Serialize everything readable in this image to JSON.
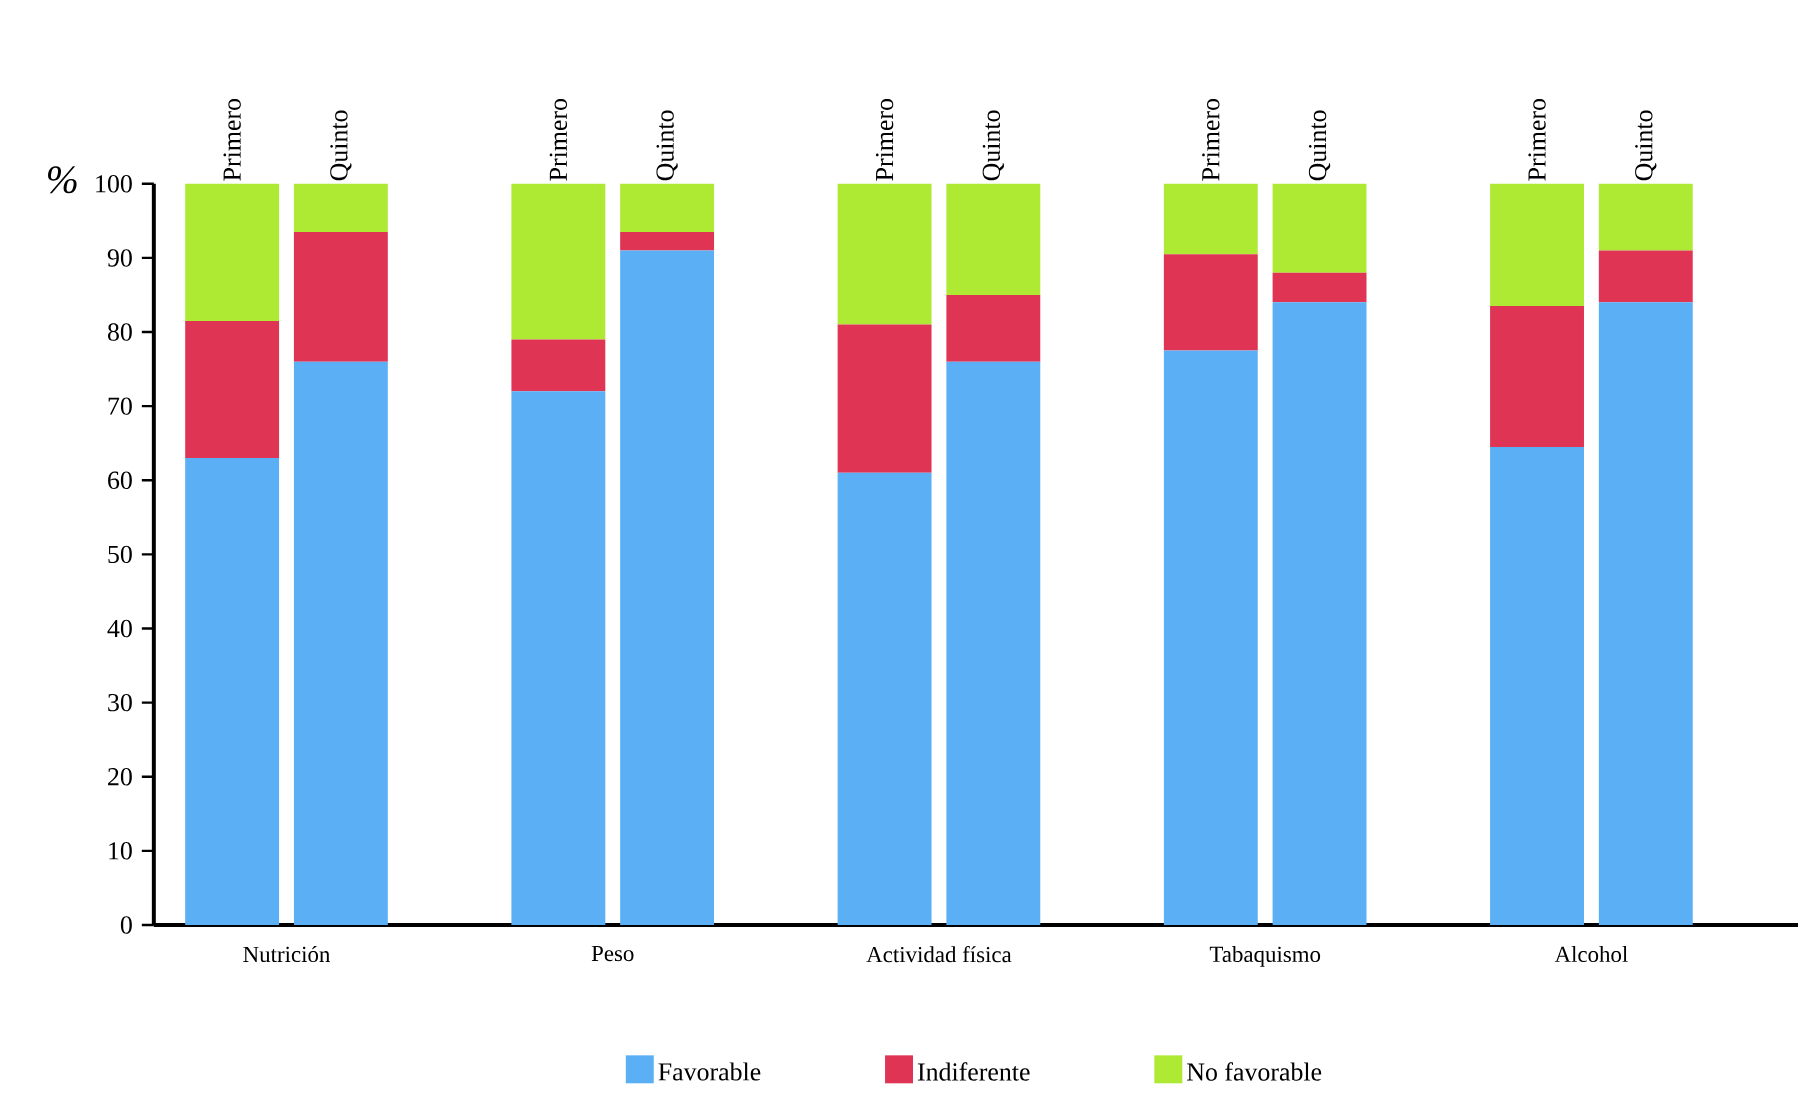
{
  "chart_data": {
    "type": "bar",
    "stacked": true,
    "ylabel": "%",
    "categories": [
      "Primero",
      "Quinto",
      "Primero",
      "Quinto",
      "Primero",
      "Quinto",
      "Primero",
      "Quinto",
      "Primero",
      "Quinto"
    ],
    "annotations": [
      "Nutrición",
      "Peso",
      "Actividad física",
      "Tabaquismo",
      "Alcohol"
    ],
    "series": [
      {
        "name": "Favorable",
        "color": "#5aaff5",
        "values": [
          63,
          76,
          72,
          91,
          61,
          76,
          77.5,
          84,
          64.5,
          84
        ]
      },
      {
        "name": "Indiferente",
        "color": "#e03455",
        "values": [
          18.5,
          17.5,
          7,
          2.5,
          20,
          9,
          13,
          4,
          19,
          7
        ]
      },
      {
        "name": "No favorable",
        "color": "#aee934",
        "values": [
          18.5,
          6.5,
          21,
          6.5,
          19,
          15,
          9.5,
          12,
          16.5,
          9
        ]
      }
    ],
    "ylim": [
      0,
      100
    ],
    "yticks": [
      0,
      10,
      20,
      30,
      40,
      50,
      60,
      70,
      80,
      90,
      100
    ],
    "legend": "bottom",
    "grid": false
  }
}
